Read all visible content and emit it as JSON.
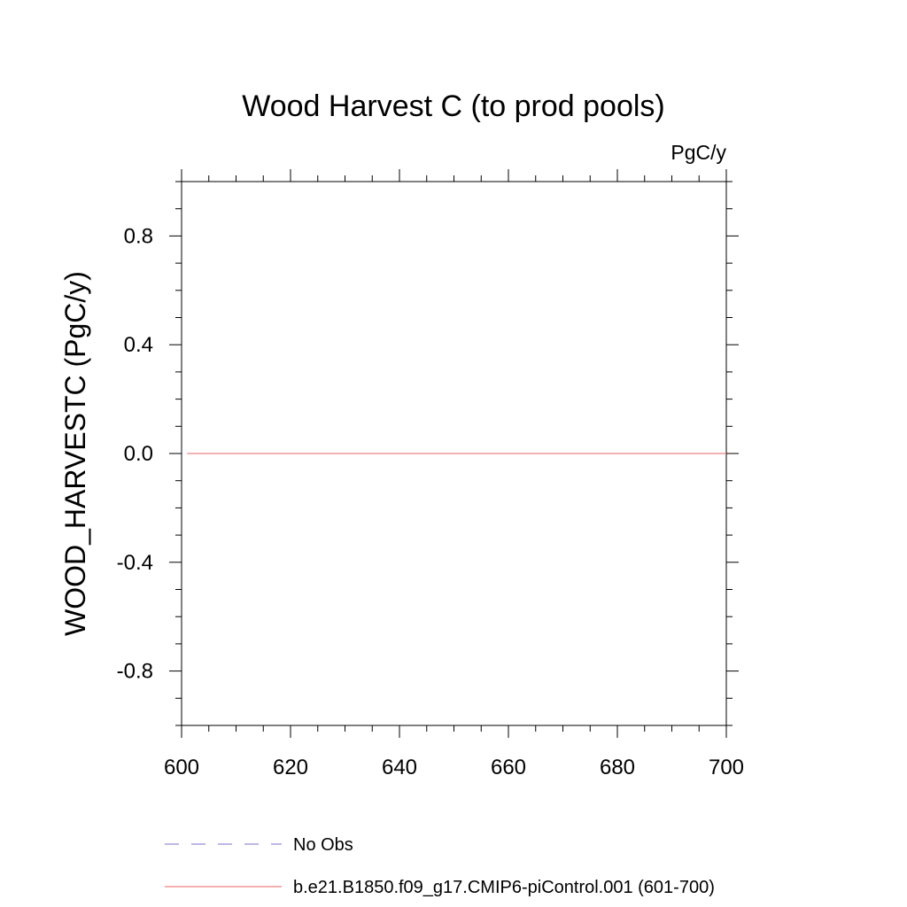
{
  "chart_data": {
    "type": "line",
    "title": "Wood Harvest C (to prod pools)",
    "units": "PgC/y",
    "xlabel": "",
    "ylabel": "WOOD_HARVESTC  (PgC/y)",
    "xlim": [
      600,
      700
    ],
    "ylim": [
      -1.0,
      1.0
    ],
    "x_ticks": [
      600,
      620,
      640,
      660,
      680,
      700
    ],
    "x_tick_labels": [
      "600",
      "620",
      "640",
      "660",
      "680",
      "700"
    ],
    "y_ticks": [
      -0.8,
      -0.4,
      0.0,
      0.4,
      0.8
    ],
    "y_tick_labels": [
      "-0.8",
      "-0.4",
      "0.0",
      "0.4",
      "0.8"
    ],
    "grid": false,
    "legend_position": "bottom",
    "series": [
      {
        "name": "No Obs",
        "style": "dashed",
        "color": "#9a8cd8",
        "x": [],
        "y": []
      },
      {
        "name": "b.e21.B1850.f09_g17.CMIP6-piControl.001 (601-700)",
        "style": "solid",
        "color": "#f08080",
        "x": [
          601,
          700
        ],
        "y": [
          0.0,
          0.0
        ]
      }
    ]
  }
}
